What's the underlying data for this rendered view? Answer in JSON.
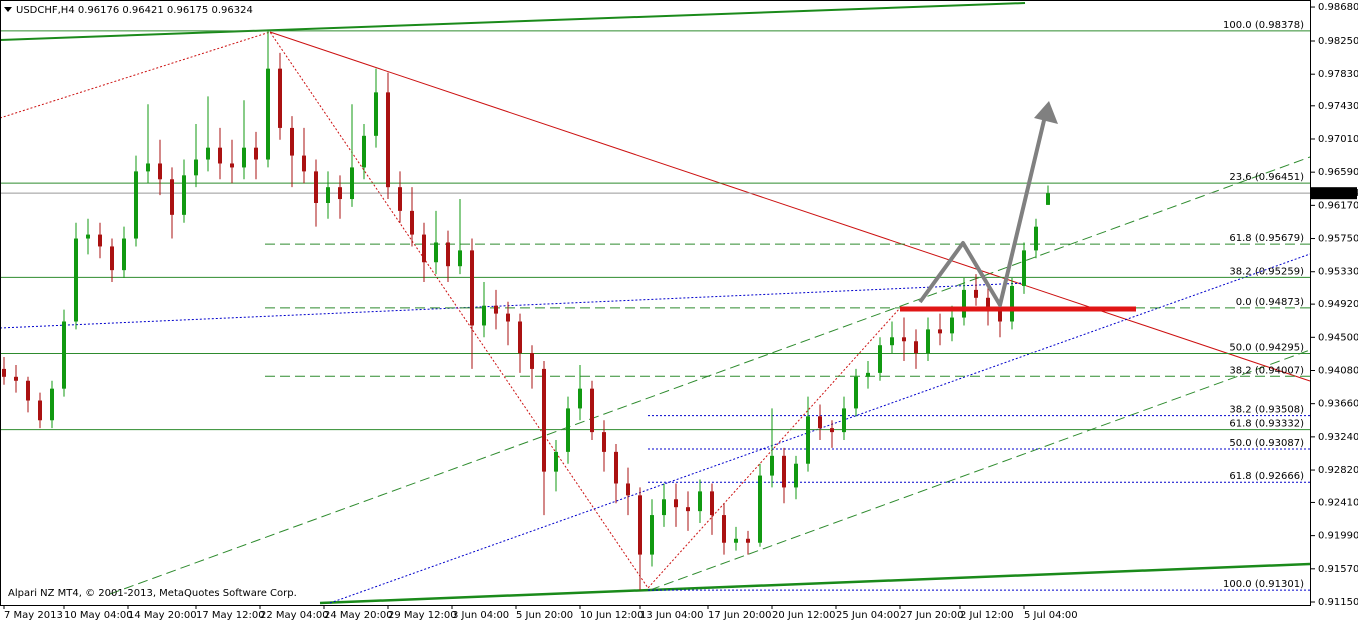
{
  "chart_data": {
    "type": "candlestick",
    "title": "USDCHF,H4  0.96176 0.96421 0.96175 0.96324",
    "footer": "Alpari NZ MT4, © 2001-2013, MetaQuotes Software Corp.",
    "up_color": "#119911",
    "down_color": "#aa1111",
    "xlim": [
      0,
      327.5
    ],
    "ylim": [
      0.91112,
      0.98769
    ],
    "xticks": [
      {
        "value": 1,
        "label": "7 May 2013"
      },
      {
        "value": 16,
        "label": "10 May 04:00"
      },
      {
        "value": 32,
        "label": "14 May 20:00"
      },
      {
        "value": 49,
        "label": "17 May 12:00"
      },
      {
        "value": 65,
        "label": "22 May 04:00"
      },
      {
        "value": 81,
        "label": "24 May 20:00"
      },
      {
        "value": 97,
        "label": "29 May 12:00"
      },
      {
        "value": 113,
        "label": "3 Jun 04:00"
      },
      {
        "value": 129,
        "label": "5 Jun 20:00"
      },
      {
        "value": 145,
        "label": "10 Jun 12:00"
      },
      {
        "value": 160,
        "label": "13 Jun 04:00"
      },
      {
        "value": 177,
        "label": "17 Jun 20:00"
      },
      {
        "value": 193,
        "label": "20 Jun 12:00"
      },
      {
        "value": 209,
        "label": "25 Jun 04:00"
      },
      {
        "value": 225,
        "label": "27 Jun 20:00"
      },
      {
        "value": 240,
        "label": "2 Jul 12:00"
      },
      {
        "value": 256,
        "label": "5 Jul 04:00"
      }
    ],
    "yticks": [
      {
        "value": 0.9868,
        "label": "0.98680"
      },
      {
        "value": 0.9825,
        "label": "0.98250"
      },
      {
        "value": 0.9783,
        "label": "0.97830"
      },
      {
        "value": 0.9743,
        "label": "0.97430"
      },
      {
        "value": 0.9701,
        "label": "0.97010"
      },
      {
        "value": 0.9659,
        "label": "0.96590"
      },
      {
        "value": 0.9617,
        "label": "0.96170"
      },
      {
        "value": 0.9575,
        "label": "0.95750"
      },
      {
        "value": 0.9533,
        "label": "0.95330"
      },
      {
        "value": 0.9492,
        "label": "0.94920"
      },
      {
        "value": 0.945,
        "label": "0.94500"
      },
      {
        "value": 0.9408,
        "label": "0.94080"
      },
      {
        "value": 0.9366,
        "label": "0.93660"
      },
      {
        "value": 0.9324,
        "label": "0.93240"
      },
      {
        "value": 0.9282,
        "label": "0.92820"
      },
      {
        "value": 0.9241,
        "label": "0.92410"
      },
      {
        "value": 0.9199,
        "label": "0.91990"
      },
      {
        "value": 0.9157,
        "label": "0.91570"
      },
      {
        "value": 0.9115,
        "label": "0.91150"
      }
    ],
    "last_price": 0.96324,
    "fib_levels": [
      {
        "label": "100.0 (0.98378)",
        "value": 0.98378,
        "style": "solid",
        "color": "#2e8b2e"
      },
      {
        "label": "23.6 (0.96451)",
        "value": 0.96451,
        "style": "solid",
        "color": "#2e8b2e"
      },
      {
        "label": "61.8 (0.95679)",
        "value": 0.95679,
        "style": "dashed",
        "color": "#2e8b2e"
      },
      {
        "label": "38.2 (0.95259)",
        "value": 0.95259,
        "style": "solid",
        "color": "#2e8b2e"
      },
      {
        "label": "0.0 (0.94873)",
        "value": 0.94873,
        "style": "dashed",
        "color": "#2e8b2e"
      },
      {
        "label": "50.0 (0.94295)",
        "value": 0.94295,
        "style": "solid",
        "color": "#2e8b2e"
      },
      {
        "label": "38.2 (0.94007)",
        "value": 0.94007,
        "style": "dashed",
        "color": "#2e8b2e"
      },
      {
        "label": "38.2 (0.93508)",
        "value": 0.93508,
        "style": "dotted",
        "color": "#0000cc"
      },
      {
        "label": "61.8 (0.93332)",
        "value": 0.93332,
        "style": "solid",
        "color": "#2e8b2e"
      },
      {
        "label": "50.0 (0.93087)",
        "value": 0.93087,
        "style": "dotted",
        "color": "#0000cc"
      },
      {
        "label": "61.8 (0.92666)",
        "value": 0.92666,
        "style": "dotted",
        "color": "#0000cc"
      },
      {
        "label": "100.0 (0.91301)",
        "value": 0.91301,
        "style": "dotted",
        "color": "#0000cc"
      }
    ],
    "candles": [
      [
        1,
        0.941,
        0.9425,
        0.939,
        0.94
      ],
      [
        4,
        0.94,
        0.9415,
        0.938,
        0.9395
      ],
      [
        7,
        0.9395,
        0.94,
        0.9355,
        0.937
      ],
      [
        10,
        0.937,
        0.938,
        0.9335,
        0.9345
      ],
      [
        13,
        0.9345,
        0.9395,
        0.9335,
        0.9385
      ],
      [
        16,
        0.9385,
        0.9485,
        0.9375,
        0.947
      ],
      [
        19,
        0.947,
        0.9595,
        0.946,
        0.9575
      ],
      [
        22,
        0.9575,
        0.96,
        0.9555,
        0.958
      ],
      [
        25,
        0.958,
        0.9595,
        0.955,
        0.9565
      ],
      [
        28,
        0.9565,
        0.9575,
        0.952,
        0.9535
      ],
      [
        31,
        0.9535,
        0.959,
        0.9525,
        0.9575
      ],
      [
        34,
        0.9575,
        0.968,
        0.9565,
        0.966
      ],
      [
        37,
        0.966,
        0.9745,
        0.9645,
        0.967
      ],
      [
        40,
        0.967,
        0.97,
        0.963,
        0.965
      ],
      [
        43,
        0.965,
        0.9665,
        0.9575,
        0.9605
      ],
      [
        46,
        0.9605,
        0.9675,
        0.9595,
        0.9655
      ],
      [
        49,
        0.9655,
        0.972,
        0.964,
        0.9675
      ],
      [
        52,
        0.9675,
        0.9755,
        0.966,
        0.969
      ],
      [
        55,
        0.969,
        0.9715,
        0.965,
        0.967
      ],
      [
        58,
        0.967,
        0.97,
        0.9645,
        0.9665
      ],
      [
        61,
        0.9665,
        0.975,
        0.965,
        0.969
      ],
      [
        64,
        0.969,
        0.971,
        0.965,
        0.9675
      ],
      [
        67,
        0.9675,
        0.9838,
        0.9665,
        0.979
      ],
      [
        70,
        0.979,
        0.981,
        0.97,
        0.9715
      ],
      [
        73,
        0.9715,
        0.973,
        0.964,
        0.968
      ],
      [
        76,
        0.968,
        0.9715,
        0.9645,
        0.966
      ],
      [
        79,
        0.966,
        0.9675,
        0.959,
        0.962
      ],
      [
        82,
        0.962,
        0.966,
        0.96,
        0.964
      ],
      [
        85,
        0.964,
        0.9655,
        0.96,
        0.9625
      ],
      [
        88,
        0.9625,
        0.9745,
        0.9615,
        0.9665
      ],
      [
        91,
        0.9665,
        0.972,
        0.965,
        0.9705
      ],
      [
        94,
        0.9705,
        0.979,
        0.969,
        0.976
      ],
      [
        97,
        0.976,
        0.9785,
        0.9625,
        0.964
      ],
      [
        100,
        0.964,
        0.966,
        0.9595,
        0.961
      ],
      [
        103,
        0.961,
        0.964,
        0.9565,
        0.958
      ],
      [
        106,
        0.958,
        0.9595,
        0.952,
        0.9545
      ],
      [
        109,
        0.9545,
        0.961,
        0.953,
        0.957
      ],
      [
        112,
        0.957,
        0.9585,
        0.952,
        0.954
      ],
      [
        115,
        0.954,
        0.9625,
        0.953,
        0.956
      ],
      [
        118,
        0.956,
        0.9575,
        0.941,
        0.9465
      ],
      [
        121,
        0.9465,
        0.952,
        0.945,
        0.949
      ],
      [
        124,
        0.949,
        0.951,
        0.946,
        0.948
      ],
      [
        127,
        0.948,
        0.9495,
        0.944,
        0.947
      ],
      [
        130,
        0.947,
        0.948,
        0.9405,
        0.943
      ],
      [
        133,
        0.943,
        0.944,
        0.9385,
        0.941
      ],
      [
        136,
        0.941,
        0.942,
        0.9225,
        0.928
      ],
      [
        139,
        0.928,
        0.932,
        0.9255,
        0.9305
      ],
      [
        142,
        0.9305,
        0.9375,
        0.929,
        0.936
      ],
      [
        145,
        0.936,
        0.9415,
        0.9345,
        0.9385
      ],
      [
        148,
        0.9385,
        0.9395,
        0.932,
        0.933
      ],
      [
        151,
        0.933,
        0.9345,
        0.928,
        0.9305
      ],
      [
        154,
        0.9305,
        0.9315,
        0.924,
        0.9265
      ],
      [
        157,
        0.9265,
        0.9285,
        0.9225,
        0.925
      ],
      [
        160,
        0.925,
        0.926,
        0.913,
        0.9175
      ],
      [
        163,
        0.9175,
        0.9245,
        0.916,
        0.9225
      ],
      [
        166,
        0.9225,
        0.9265,
        0.921,
        0.9245
      ],
      [
        169,
        0.9245,
        0.9265,
        0.921,
        0.9235
      ],
      [
        172,
        0.9235,
        0.9255,
        0.9205,
        0.923
      ],
      [
        175,
        0.923,
        0.927,
        0.9215,
        0.9255
      ],
      [
        178,
        0.9255,
        0.9265,
        0.92,
        0.9225
      ],
      [
        181,
        0.9225,
        0.924,
        0.9175,
        0.919
      ],
      [
        184,
        0.919,
        0.921,
        0.918,
        0.9195
      ],
      [
        187,
        0.9195,
        0.9205,
        0.9175,
        0.919
      ],
      [
        190,
        0.919,
        0.929,
        0.9185,
        0.9275
      ],
      [
        193,
        0.9275,
        0.936,
        0.926,
        0.93
      ],
      [
        196,
        0.93,
        0.931,
        0.924,
        0.926
      ],
      [
        199,
        0.926,
        0.93,
        0.9245,
        0.929
      ],
      [
        202,
        0.929,
        0.9375,
        0.928,
        0.935
      ],
      [
        205,
        0.935,
        0.9365,
        0.932,
        0.9335
      ],
      [
        208,
        0.9335,
        0.9345,
        0.931,
        0.933
      ],
      [
        211,
        0.933,
        0.9375,
        0.932,
        0.936
      ],
      [
        214,
        0.936,
        0.941,
        0.935,
        0.94
      ],
      [
        217,
        0.94,
        0.942,
        0.9385,
        0.9405
      ],
      [
        220,
        0.9405,
        0.945,
        0.9395,
        0.944
      ],
      [
        223,
        0.944,
        0.947,
        0.943,
        0.945
      ],
      [
        226,
        0.945,
        0.9475,
        0.942,
        0.9445
      ],
      [
        229,
        0.9445,
        0.946,
        0.941,
        0.943
      ],
      [
        232,
        0.943,
        0.9475,
        0.942,
        0.946
      ],
      [
        235,
        0.946,
        0.948,
        0.944,
        0.9455
      ],
      [
        238,
        0.9455,
        0.949,
        0.9445,
        0.9475
      ],
      [
        241,
        0.9475,
        0.9525,
        0.9465,
        0.951
      ],
      [
        244,
        0.951,
        0.953,
        0.949,
        0.95
      ],
      [
        247,
        0.95,
        0.952,
        0.9465,
        0.9485
      ],
      [
        250,
        0.9485,
        0.9495,
        0.945,
        0.947
      ],
      [
        253,
        0.947,
        0.9525,
        0.946,
        0.9515
      ],
      [
        256,
        0.9515,
        0.957,
        0.9505,
        0.956
      ],
      [
        259,
        0.956,
        0.96,
        0.955,
        0.959
      ],
      [
        262,
        0.96176,
        0.96421,
        0.96175,
        0.96324
      ]
    ]
  }
}
